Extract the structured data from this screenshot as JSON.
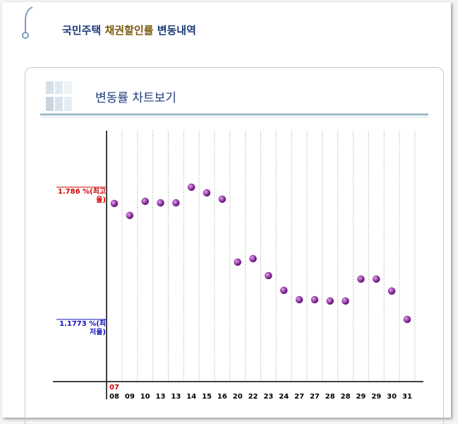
{
  "header": {
    "title_parts": [
      "국민주택",
      "채권할인률",
      "변동내역"
    ]
  },
  "section": {
    "title": "변동률 차트보기"
  },
  "chart_data": {
    "type": "scatter",
    "x_group_label": "07",
    "categories": [
      "08",
      "09",
      "10",
      "13",
      "13",
      "14",
      "15",
      "16",
      "20",
      "22",
      "23",
      "24",
      "27",
      "27",
      "28",
      "28",
      "29",
      "29",
      "30",
      "31"
    ],
    "values": [
      1.711,
      1.656,
      1.721,
      1.714,
      1.714,
      1.786,
      1.76,
      1.731,
      1.441,
      1.457,
      1.379,
      1.311,
      1.268,
      1.268,
      1.262,
      1.262,
      1.363,
      1.363,
      1.308,
      1.1773
    ],
    "color": "#8a1a9e",
    "ylim": [
      0.891,
      2.046
    ],
    "yticks": [
      {
        "value": 1.1773,
        "label": "1.1773 %(최저율)"
      },
      {
        "value": 1.786,
        "label": "1.786 %(최고율)"
      }
    ],
    "tick_colors": [
      "#1010c0",
      "#d00000"
    ],
    "grid": true
  }
}
